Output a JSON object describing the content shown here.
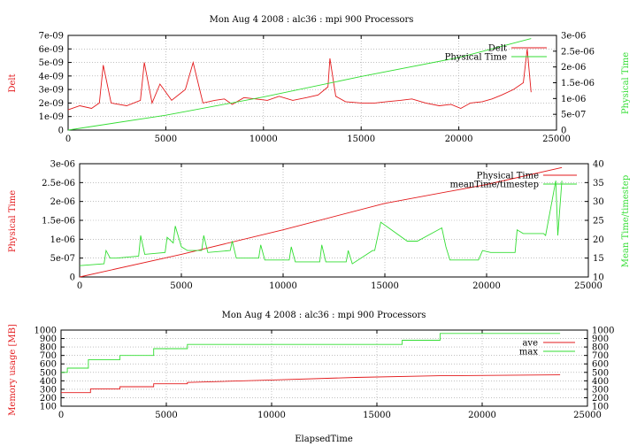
{
  "colors": {
    "red": "#e31a1c",
    "green": "#33dd33",
    "grid": "#9a9a9a"
  },
  "chart_data": [
    {
      "type": "line",
      "title": "Mon Aug 4 2008 : alc36 : mpi 900 Processors",
      "xlabel": "",
      "ylabel": "Delt",
      "y2label": "Physical Time",
      "xlim": [
        0,
        25000
      ],
      "ylim": [
        0,
        7e-09
      ],
      "y2lim": [
        0,
        3e-06
      ],
      "xticks": [
        "0",
        "5000",
        "10000",
        "15000",
        "20000",
        "25000"
      ],
      "yticks": [
        "0",
        "1e-09",
        "2e-09",
        "3e-09",
        "4e-09",
        "5e-09",
        "6e-09",
        "7e-09"
      ],
      "y2ticks": [
        "0",
        "5e-07",
        "1e-06",
        "1.5e-06",
        "2e-06",
        "2.5e-06",
        "3e-06"
      ],
      "grid": true,
      "legend_position": "top-right",
      "series": [
        {
          "name": "Delt",
          "axis": "y1",
          "color": "#e31a1c",
          "x": [
            0,
            600,
            1200,
            1600,
            1800,
            2200,
            3000,
            3700,
            3900,
            4300,
            4700,
            5300,
            6000,
            6400,
            6900,
            7500,
            8000,
            8400,
            9000,
            9600,
            10200,
            10800,
            11500,
            12200,
            12800,
            13300,
            13400,
            13700,
            14200,
            15000,
            15700,
            16300,
            17000,
            17600,
            18300,
            19000,
            19600,
            20100,
            20600,
            21200,
            21700,
            22200,
            22800,
            23300,
            23500,
            23700
          ],
          "y": [
            1.5e-09,
            1.8e-09,
            1.6e-09,
            2e-09,
            4.8e-09,
            2e-09,
            1.8e-09,
            2.2e-09,
            5e-09,
            2e-09,
            3.4e-09,
            2.2e-09,
            3e-09,
            5e-09,
            2e-09,
            2.2e-09,
            2.3e-09,
            1.9e-09,
            2.4e-09,
            2.3e-09,
            2.2e-09,
            2.5e-09,
            2.2e-09,
            2.4e-09,
            2.6e-09,
            3.2e-09,
            5.3e-09,
            2.5e-09,
            2.1e-09,
            2e-09,
            2e-09,
            2.1e-09,
            2.2e-09,
            2.3e-09,
            2e-09,
            1.8e-09,
            1.9e-09,
            1.6e-09,
            2e-09,
            2.1e-09,
            2.3e-09,
            2.6e-09,
            3e-09,
            3.5e-09,
            6e-09,
            2.8e-09
          ]
        },
        {
          "name": "Physical Time",
          "axis": "y2",
          "color": "#33dd33",
          "x": [
            0,
            5000,
            10000,
            15000,
            20000,
            23700
          ],
          "y": [
            0,
            4.7e-07,
            1.05e-06,
            1.7e-06,
            2.3e-06,
            2.9e-06
          ]
        }
      ]
    },
    {
      "type": "line",
      "title": "",
      "xlabel": "",
      "ylabel": "Physical Time",
      "y2label": "Mean Time/timestep",
      "xlim": [
        0,
        25000
      ],
      "ylim": [
        0,
        3e-06
      ],
      "y2lim": [
        10,
        40
      ],
      "xticks": [
        "0",
        "5000",
        "10000",
        "15000",
        "20000",
        "25000"
      ],
      "yticks": [
        "0",
        "5e-07",
        "1e-06",
        "1.5e-06",
        "2e-06",
        "2.5e-06",
        "3e-06"
      ],
      "y2ticks": [
        "10",
        "15",
        "20",
        "25",
        "30",
        "35",
        "40"
      ],
      "grid": true,
      "legend_position": "top-right",
      "series": [
        {
          "name": "Physical Time",
          "axis": "y1",
          "color": "#e31a1c",
          "x": [
            0,
            5000,
            10000,
            15000,
            20000,
            23700
          ],
          "y": [
            0,
            6e-07,
            1.25e-06,
            1.95e-06,
            2.45e-06,
            2.9e-06
          ]
        },
        {
          "name": "meanTime/timestep",
          "axis": "y2",
          "color": "#33dd33",
          "x": [
            0,
            1200,
            1300,
            1500,
            1800,
            2900,
            3000,
            3200,
            4200,
            4300,
            4600,
            4700,
            5000,
            5300,
            6000,
            6100,
            6300,
            7400,
            7500,
            7700,
            8800,
            8900,
            9100,
            10300,
            10400,
            10600,
            11800,
            11900,
            12100,
            13100,
            13200,
            13400,
            14400,
            14500,
            14800,
            16100,
            16200,
            16600,
            17800,
            18000,
            18200,
            19600,
            19800,
            20200,
            21400,
            21500,
            21800,
            22800,
            22900,
            23400,
            23500,
            23700
          ],
          "y": [
            13,
            13.5,
            17,
            15,
            15,
            15.5,
            21,
            16,
            16.5,
            20.5,
            19,
            23.5,
            18,
            17,
            17,
            21,
            16.5,
            17,
            19.5,
            15,
            15,
            18.5,
            14.5,
            14.5,
            18,
            14,
            14,
            18.5,
            14,
            14,
            17,
            13.5,
            17,
            17,
            24.5,
            19.5,
            19.5,
            19.5,
            23,
            18,
            14.5,
            14.5,
            17,
            16.5,
            16.5,
            22.5,
            21.5,
            21.5,
            21,
            35.5,
            21,
            35.5
          ]
        }
      ]
    },
    {
      "type": "line",
      "title": "Mon Aug 4 2008 : alc36 : mpi 900 Processors",
      "xlabel": "ElapsedTime",
      "ylabel": "Memory usage [MB]",
      "y2label": "",
      "xlim": [
        0,
        25000
      ],
      "ylim": [
        100,
        1000
      ],
      "y2lim": [
        100,
        1000
      ],
      "xticks": [
        "0",
        "5000",
        "10000",
        "15000",
        "20000",
        "25000"
      ],
      "yticks": [
        "100",
        "200",
        "300",
        "400",
        "500",
        "600",
        "700",
        "800",
        "900",
        "1000"
      ],
      "y2ticks": [
        "100",
        "200",
        "300",
        "400",
        "500",
        "600",
        "700",
        "800",
        "900",
        "1000"
      ],
      "grid": true,
      "legend_position": "top-right",
      "series": [
        {
          "name": "ave",
          "axis": "y1",
          "color": "#e31a1c",
          "x": [
            0,
            1400,
            1400,
            2800,
            2800,
            4400,
            4400,
            6000,
            6000,
            10000,
            14000,
            18000,
            23700
          ],
          "y": [
            260,
            260,
            305,
            305,
            330,
            330,
            365,
            365,
            380,
            410,
            440,
            460,
            470
          ]
        },
        {
          "name": "max",
          "axis": "y1",
          "color": "#33dd33",
          "x": [
            0,
            300,
            300,
            1300,
            1300,
            2800,
            2800,
            4400,
            4400,
            6000,
            6000,
            16200,
            16200,
            18000,
            18000,
            23700
          ],
          "y": [
            500,
            500,
            550,
            550,
            650,
            650,
            700,
            700,
            780,
            780,
            830,
            830,
            880,
            880,
            960,
            960
          ]
        }
      ]
    }
  ]
}
